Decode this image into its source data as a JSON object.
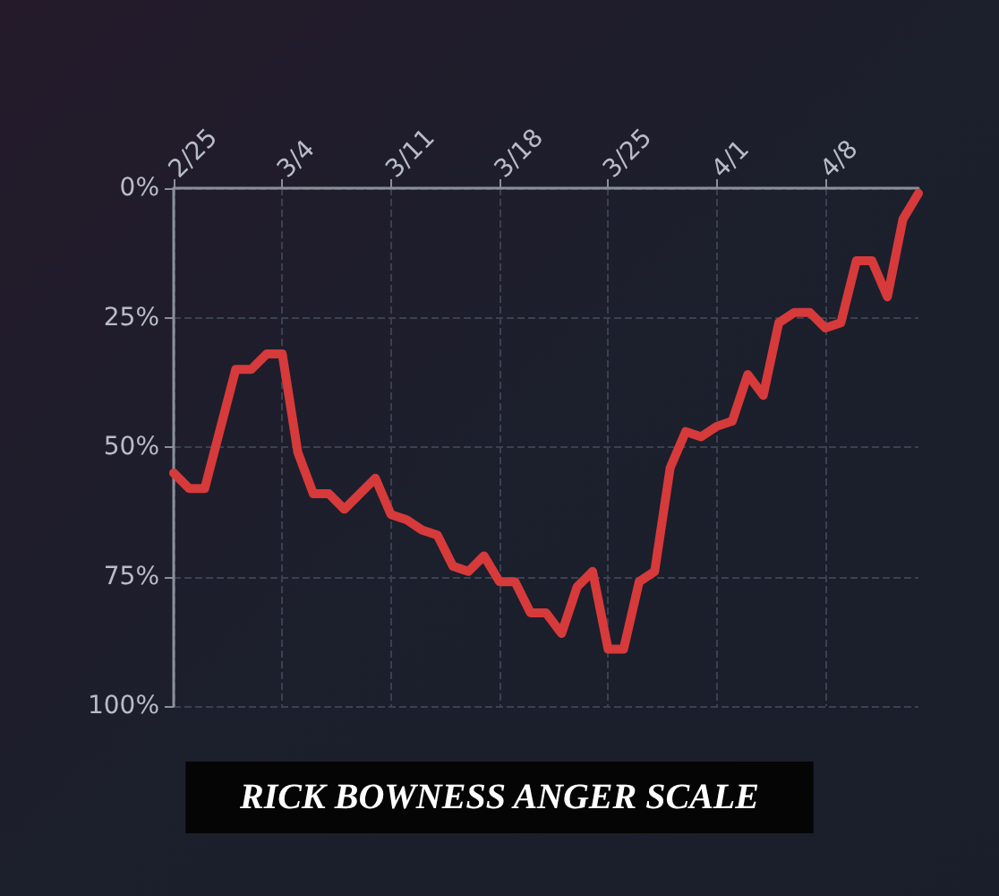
{
  "chart_data": {
    "type": "line",
    "title": "RICK BOWNESS ANGER SCALE",
    "x": [
      "--02-25",
      "--02-26",
      "--02-27",
      "--03-01",
      "--03-02",
      "--03-03",
      "--03-04",
      "--03-05",
      "--03-06",
      "--03-07",
      "--03-08",
      "--03-10",
      "--03-11",
      "--03-12",
      "--03-13",
      "--03-14",
      "--03-15",
      "--03-16",
      "--03-17",
      "--03-18",
      "--03-19",
      "--03-20",
      "--03-21",
      "--03-22",
      "--03-23",
      "--03-24",
      "--03-25",
      "--03-26",
      "--03-27",
      "--03-28",
      "--03-29",
      "--03-30",
      "--03-31",
      "--04-01",
      "--04-02",
      "--04-03",
      "--04-04",
      "--04-05",
      "--04-06",
      "--04-07",
      "--04-08",
      "--04-09",
      "--04-10",
      "--04-11",
      "--04-12",
      "--04-13",
      "--04-14"
    ],
    "series": [
      {
        "color": "#d63a3a",
        "values": [
          55,
          58,
          58,
          35,
          35,
          32,
          32,
          51,
          59,
          59,
          62,
          56,
          63,
          64,
          66,
          67,
          73,
          74,
          71,
          76,
          76,
          82,
          82,
          86,
          77,
          74,
          89,
          89,
          76,
          74,
          54,
          47,
          48,
          46,
          45,
          36,
          40,
          26,
          24,
          24,
          27,
          26,
          14,
          14,
          21,
          6,
          1
        ]
      }
    ],
    "xlim": [
      "--02-25",
      "--04-14"
    ],
    "xticks": [
      {
        "value": "--02-25",
        "label": "2/25"
      },
      {
        "value": "--03-04",
        "label": "3/4"
      },
      {
        "value": "--03-11",
        "label": "3/11"
      },
      {
        "value": "--03-18",
        "label": "3/18"
      },
      {
        "value": "--03-25",
        "label": "3/25"
      },
      {
        "value": "--04-01",
        "label": "4/1"
      },
      {
        "value": "--04-08",
        "label": "4/8"
      }
    ],
    "ylim": [
      100,
      0
    ],
    "yticks": [
      {
        "value": 0,
        "label": "0%"
      },
      {
        "value": 25,
        "label": "25%"
      },
      {
        "value": 50,
        "label": "50%"
      },
      {
        "value": 75,
        "label": "75%"
      },
      {
        "value": 100,
        "label": "100%"
      }
    ],
    "grid": true,
    "marker": "none",
    "line_style": "solid"
  }
}
